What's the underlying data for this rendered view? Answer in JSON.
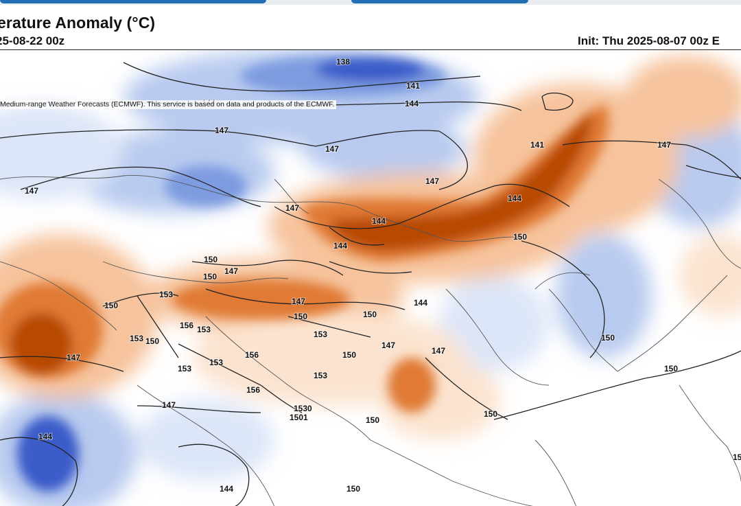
{
  "header": {
    "title": "erature Anomaly (°C)",
    "valid_time": "25-08-22 00z",
    "init_time": "Init: Thu 2025-08-07 00z E"
  },
  "map": {
    "attribution": "Medium-range Weather Forecasts (ECMWF). This service is based on data and products of the ECMWF.",
    "colors": {
      "warm_strong": "#b84a06",
      "warm_mid": "#e07a36",
      "warm_light": "#f6c39c",
      "warm_faint": "#fbe3cf",
      "cool_strong": "#3b5bc9",
      "cool_mid": "#7d9be0",
      "cool_light": "#b8caef",
      "cool_faint": "#dde6f8",
      "contour": "#222222",
      "border": "#555555"
    },
    "contour_labels": [
      {
        "text": "138"
      },
      {
        "text": "141"
      },
      {
        "text": "144"
      },
      {
        "text": "144"
      },
      {
        "text": "147"
      },
      {
        "text": "147"
      },
      {
        "text": "147"
      },
      {
        "text": "147"
      },
      {
        "text": "141"
      },
      {
        "text": "147"
      },
      {
        "text": "147"
      },
      {
        "text": "144"
      },
      {
        "text": "144"
      },
      {
        "text": "144"
      },
      {
        "text": "150"
      },
      {
        "text": "150"
      },
      {
        "text": "150"
      },
      {
        "text": "147"
      },
      {
        "text": "150"
      },
      {
        "text": "153"
      },
      {
        "text": "147"
      },
      {
        "text": "150"
      },
      {
        "text": "150"
      },
      {
        "text": "144"
      },
      {
        "text": "156"
      },
      {
        "text": "153"
      },
      {
        "text": "153"
      },
      {
        "text": "150"
      },
      {
        "text": "147"
      },
      {
        "text": "153"
      },
      {
        "text": "156"
      },
      {
        "text": "150"
      },
      {
        "text": "147"
      },
      {
        "text": "147"
      },
      {
        "text": "153"
      },
      {
        "text": "153"
      },
      {
        "text": "156"
      },
      {
        "text": "153"
      },
      {
        "text": "147"
      },
      {
        "text": "1530"
      },
      {
        "text": "1501"
      },
      {
        "text": "150"
      },
      {
        "text": "150"
      },
      {
        "text": "150"
      },
      {
        "text": "150"
      },
      {
        "text": "144"
      },
      {
        "text": "144"
      },
      {
        "text": "150"
      },
      {
        "text": "15"
      }
    ]
  }
}
